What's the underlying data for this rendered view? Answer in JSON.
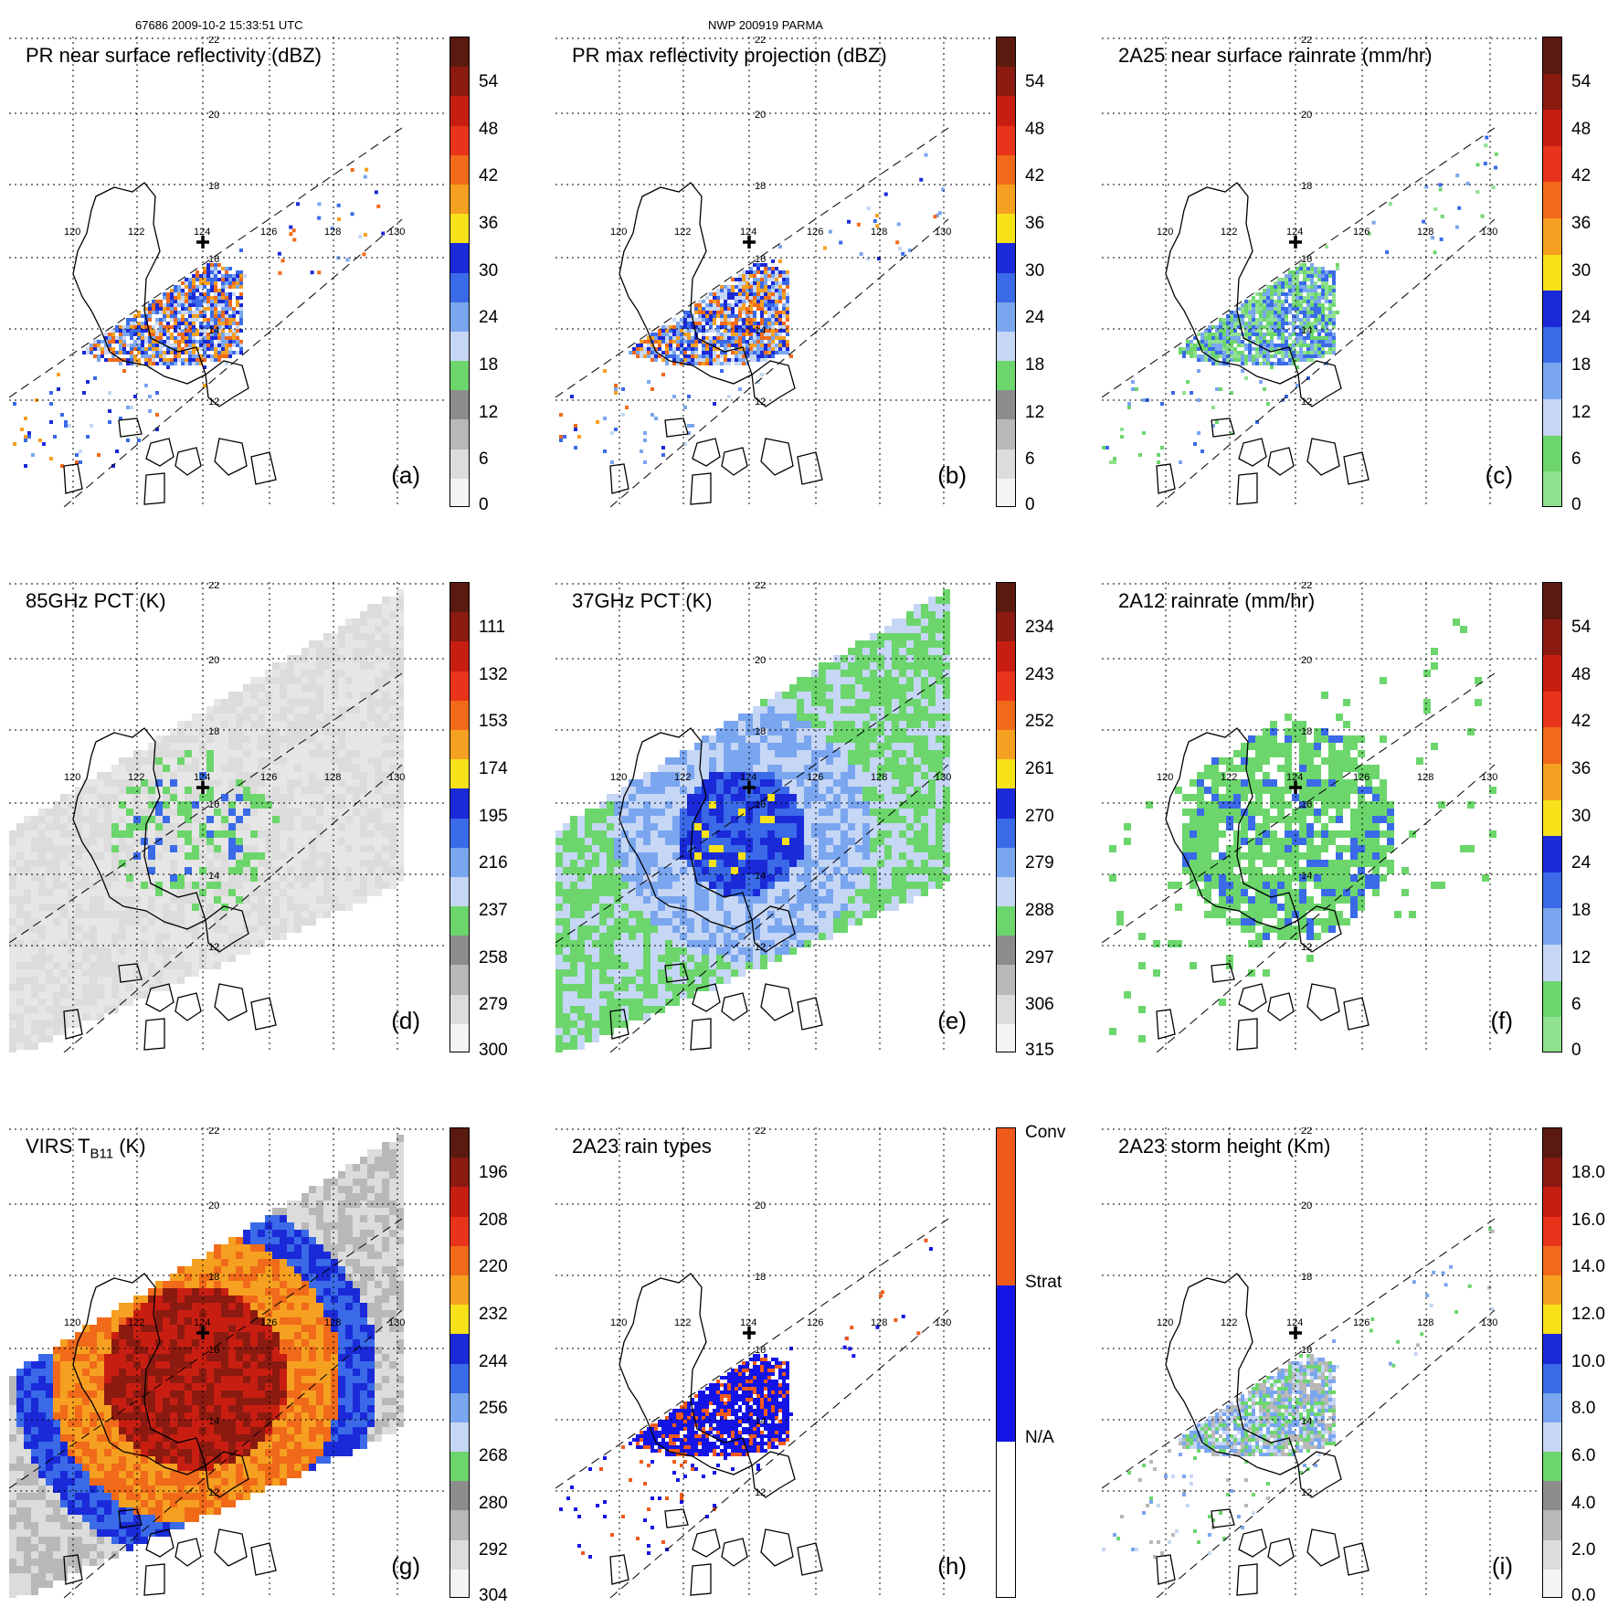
{
  "header": {
    "orbit_info": "67686 2009-10-2 15:33:51 UTC",
    "case_info": "NWP 200919 PARMA"
  },
  "panels": [
    {
      "id": "a",
      "title": "PR near surface reflectivity (dBZ)",
      "label": "(a)",
      "colorbar": {
        "ticks": [
          "54",
          "48",
          "42",
          "36",
          "30",
          "24",
          "18",
          "12",
          "6",
          "0"
        ],
        "colors": [
          "#5a1a0f",
          "#8b1a10",
          "#c81e12",
          "#e8341a",
          "#f06a1a",
          "#f5a020",
          "#f7e21a",
          "#1a2ad8",
          "#3a6ae8",
          "#7aa6f0",
          "#c6d6f5",
          "#6cd66c",
          "#8c8c8c",
          "#b8b8b8",
          "#dcdcdc",
          "#f4f4f4"
        ]
      },
      "field": "radar"
    },
    {
      "id": "b",
      "title": "PR max reflectivity projection (dBZ)",
      "label": "(b)",
      "colorbar": {
        "ticks": [
          "54",
          "48",
          "42",
          "36",
          "30",
          "24",
          "18",
          "12",
          "6",
          "0"
        ],
        "colors": [
          "#5a1a0f",
          "#8b1a10",
          "#c81e12",
          "#e8341a",
          "#f06a1a",
          "#f5a020",
          "#f7e21a",
          "#1a2ad8",
          "#3a6ae8",
          "#7aa6f0",
          "#c6d6f5",
          "#6cd66c",
          "#8c8c8c",
          "#b8b8b8",
          "#dcdcdc",
          "#f4f4f4"
        ]
      },
      "field": "radar_max"
    },
    {
      "id": "c",
      "title": "2A25 near surface rainrate (mm/hr)",
      "label": "(c)",
      "colorbar": {
        "ticks": [
          "54",
          "48",
          "42",
          "36",
          "30",
          "24",
          "18",
          "12",
          "6",
          "0"
        ],
        "colors": [
          "#5a1a0f",
          "#8b1a10",
          "#c81e12",
          "#e8341a",
          "#f06a1a",
          "#f5a020",
          "#f7e21a",
          "#1a2ad8",
          "#3a6ae8",
          "#7aa6f0",
          "#c6d6f5",
          "#6cd66c",
          "#8fe08f"
        ]
      },
      "field": "rain"
    },
    {
      "id": "d",
      "title": "85GHz PCT (K)",
      "label": "(d)",
      "colorbar": {
        "ticks": [
          "111",
          "132",
          "153",
          "174",
          "195",
          "216",
          "237",
          "258",
          "279",
          "300"
        ],
        "colors": [
          "#5a1a0f",
          "#8b1a10",
          "#c81e12",
          "#e8341a",
          "#f06a1a",
          "#f5a020",
          "#f7e21a",
          "#1a2ad8",
          "#3a6ae8",
          "#7aa6f0",
          "#c6d6f5",
          "#6cd66c",
          "#8c8c8c",
          "#b8b8b8",
          "#dcdcdc",
          "#f4f4f4"
        ]
      },
      "field": "pct85"
    },
    {
      "id": "e",
      "title": "37GHz PCT (K)",
      "label": "(e)",
      "colorbar": {
        "ticks": [
          "234",
          "243",
          "252",
          "261",
          "270",
          "279",
          "288",
          "297",
          "306",
          "315"
        ],
        "colors": [
          "#5a1a0f",
          "#8b1a10",
          "#c81e12",
          "#e8341a",
          "#f06a1a",
          "#f5a020",
          "#f7e21a",
          "#1a2ad8",
          "#3a6ae8",
          "#7aa6f0",
          "#c6d6f5",
          "#6cd66c",
          "#8c8c8c",
          "#b8b8b8",
          "#dcdcdc",
          "#f4f4f4"
        ]
      },
      "field": "pct37"
    },
    {
      "id": "f",
      "title": "2A12 rainrate (mm/hr)",
      "label": "(f)",
      "colorbar": {
        "ticks": [
          "54",
          "48",
          "42",
          "36",
          "30",
          "24",
          "18",
          "12",
          "6",
          "0"
        ],
        "colors": [
          "#5a1a0f",
          "#8b1a10",
          "#c81e12",
          "#e8341a",
          "#f06a1a",
          "#f5a020",
          "#f7e21a",
          "#1a2ad8",
          "#3a6ae8",
          "#7aa6f0",
          "#c6d6f5",
          "#6cd66c",
          "#8fe08f"
        ]
      },
      "field": "rain12"
    },
    {
      "id": "g",
      "title": "VIRS T",
      "title_sub": "B11",
      "title_end": " (K)",
      "label": "(g)",
      "colorbar": {
        "ticks": [
          "196",
          "208",
          "220",
          "232",
          "244",
          "256",
          "268",
          "280",
          "292",
          "304"
        ],
        "colors": [
          "#5a1a0f",
          "#8b1a10",
          "#c81e12",
          "#e8341a",
          "#f06a1a",
          "#f5a020",
          "#f7e21a",
          "#1a2ad8",
          "#3a6ae8",
          "#7aa6f0",
          "#c6d6f5",
          "#6cd66c",
          "#8c8c8c",
          "#b8b8b8",
          "#dcdcdc",
          "#f4f4f4"
        ]
      },
      "field": "virs"
    },
    {
      "id": "h",
      "title": "2A23 rain types",
      "label": "(h)",
      "colorbar": {
        "ticks": [
          "Conv",
          "Strat",
          "N/A"
        ],
        "colors": [
          "#f05a1a",
          "#1414e6",
          "#ffffff"
        ]
      },
      "field": "raintype"
    },
    {
      "id": "i",
      "title": "2A23 storm height (Km)",
      "label": "(i)",
      "colorbar": {
        "ticks": [
          "18.0",
          "16.0",
          "14.0",
          "12.0",
          "10.0",
          "8.0",
          "6.0",
          "4.0",
          "2.0",
          "0.0"
        ],
        "colors": [
          "#5a1a0f",
          "#8b1a10",
          "#c81e12",
          "#e8341a",
          "#f06a1a",
          "#f5a020",
          "#f7e21a",
          "#1a2ad8",
          "#3a6ae8",
          "#7aa6f0",
          "#c6d6f5",
          "#6cd66c",
          "#8c8c8c",
          "#b8b8b8",
          "#dcdcdc",
          "#f4f4f4"
        ]
      },
      "field": "height"
    }
  ],
  "lat_labels": [
    "22",
    "20",
    "18",
    "16",
    "14",
    "12"
  ],
  "lon_labels": [
    "120",
    "122",
    "124",
    "126",
    "128",
    "130"
  ]
}
